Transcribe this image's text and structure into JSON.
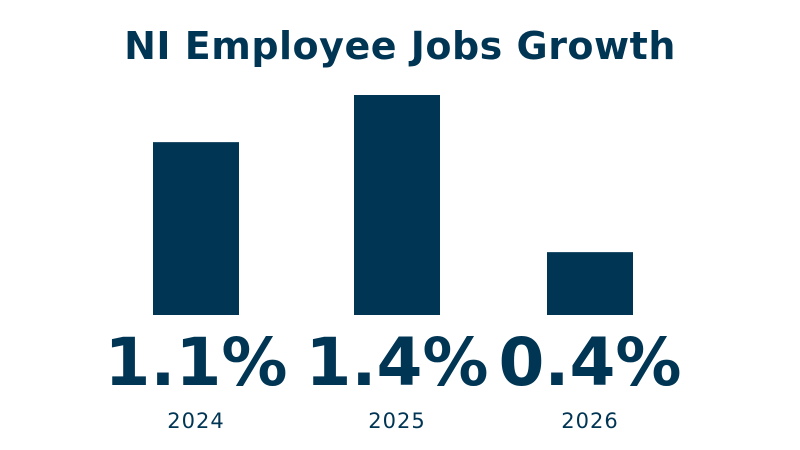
{
  "chart_data": {
    "type": "bar",
    "title": "NI Employee Jobs Growth",
    "categories": [
      "2024",
      "2025",
      "2026"
    ],
    "values": [
      1.1,
      1.4,
      0.4
    ],
    "value_labels": [
      "1.1%",
      "1.4%",
      "0.4%"
    ],
    "unit": "%",
    "ylim": [
      0,
      1.4
    ],
    "grid": false,
    "legend": "none",
    "colors": {
      "bar": "#003554",
      "text": "#003554",
      "background": "#ffffff"
    }
  }
}
